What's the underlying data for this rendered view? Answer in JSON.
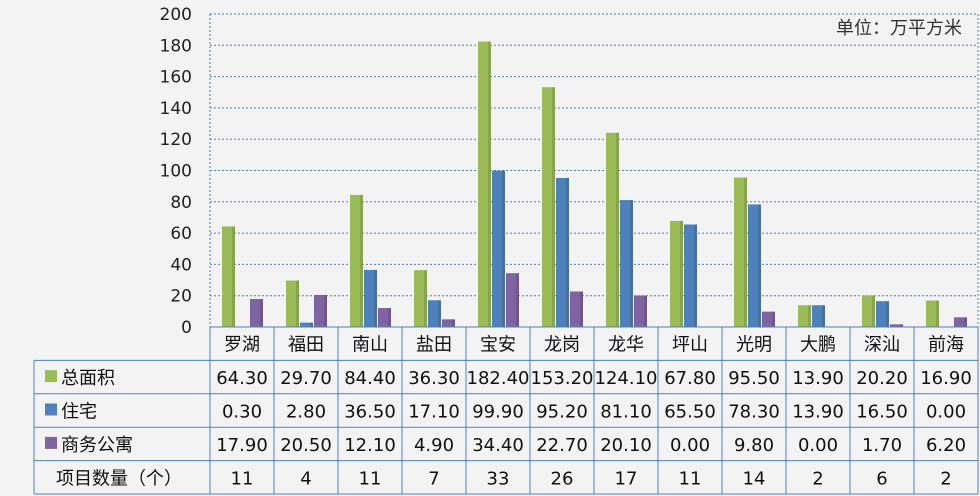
{
  "chart_data": {
    "type": "bar",
    "unit_label": "单位：万平方米",
    "ylim": [
      0,
      200
    ],
    "yticks": [
      "0",
      "20",
      "40",
      "60",
      "80",
      "100",
      "120",
      "140",
      "160",
      "180",
      "200"
    ],
    "grid": true,
    "categories": [
      "罗湖",
      "福田",
      "南山",
      "盐田",
      "宝安",
      "龙岗",
      "龙华",
      "坪山",
      "光明",
      "大鹏",
      "深汕",
      "前海"
    ],
    "series": [
      {
        "name": "总面积",
        "color": "#9bbb59",
        "values": [
          64.3,
          29.7,
          84.4,
          36.3,
          182.4,
          153.2,
          124.1,
          67.8,
          95.5,
          13.9,
          20.2,
          16.9
        ],
        "labels": [
          "64.30",
          "29.70",
          "84.40",
          "36.30",
          "182.40",
          "153.20",
          "124.10",
          "67.80",
          "95.50",
          "13.90",
          "20.20",
          "16.90"
        ]
      },
      {
        "name": "住宅",
        "color": "#4f81bd",
        "values": [
          0.3,
          2.8,
          36.5,
          17.1,
          99.9,
          95.2,
          81.1,
          65.5,
          78.3,
          13.9,
          16.5,
          0.0
        ],
        "labels": [
          "0.30",
          "2.80",
          "36.50",
          "17.10",
          "99.90",
          "95.20",
          "81.10",
          "65.50",
          "78.30",
          "13.90",
          "16.50",
          "0.00"
        ]
      },
      {
        "name": "商务公寓",
        "color": "#8064a2",
        "values": [
          17.9,
          20.5,
          12.1,
          4.9,
          34.4,
          22.7,
          20.1,
          0.0,
          9.8,
          0.0,
          1.7,
          6.2
        ],
        "labels": [
          "17.90",
          "20.50",
          "12.10",
          "4.90",
          "34.40",
          "22.70",
          "20.10",
          "0.00",
          "9.80",
          "0.00",
          "1.70",
          "6.20"
        ]
      }
    ],
    "extra_row": {
      "name": "项目数量（个）",
      "values": [
        "11",
        "4",
        "11",
        "7",
        "33",
        "26",
        "17",
        "11",
        "14",
        "2",
        "6",
        "2"
      ]
    }
  }
}
